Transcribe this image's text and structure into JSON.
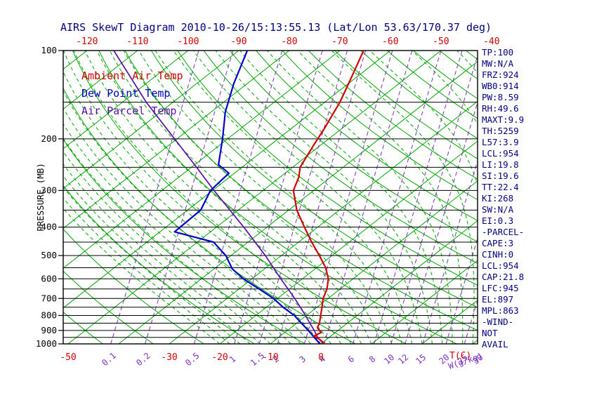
{
  "title": "AIRS SkewT Diagram 2010-10-26/15:13:55.13 (Lat/Lon 53.63/170.37 deg)",
  "legend": {
    "items": [
      {
        "label": "Ambient Air Temp",
        "color": "#D40000"
      },
      {
        "label": "Dew Point Temp",
        "color": "#0000CC"
      },
      {
        "label": "Air Parcel Temp",
        "color": "#5A0DA8"
      }
    ]
  },
  "axes": {
    "left": {
      "title": "PRESSURE (MB)",
      "ticks": [
        100,
        200,
        300,
        400,
        500,
        600,
        700,
        800,
        900,
        1000
      ]
    },
    "top": {
      "ticks": [
        -120,
        -110,
        -100,
        -90,
        -80,
        -70,
        -60,
        -50,
        -40
      ],
      "color": "#D40000"
    },
    "bottom_temp": {
      "ticks": [
        -50,
        -30,
        -20,
        -10,
        0
      ],
      "unit": "T(C)",
      "color": "#D40000"
    },
    "bottom_mixing": {
      "ticks": [
        0.1,
        0.2,
        0.5,
        1,
        1.5,
        2,
        3,
        4,
        6,
        8,
        10,
        12,
        15,
        20,
        25,
        30
      ],
      "unit": "W(g/kg)",
      "color": "#7D2FC0"
    }
  },
  "stats": [
    "TP:100",
    "MW:N/A",
    "FRZ:924",
    "WB0:914",
    "PW:8.59",
    "RH:49.6",
    "MAXT:9.9",
    "TH:5259",
    "L57:3.9",
    "LCL:954",
    "LI:19.8",
    "SI:19.6",
    "TT:22.4",
    "KI:268",
    "SW:N/A",
    "EI:0.3",
    "-PARCEL-",
    "CAPE:3",
    "CINH:0",
    "LCL:954",
    "CAP:21.8",
    "LFC:945",
    "EL:897",
    "MPL:863",
    "-WIND-",
    "NOT",
    "AVAIL"
  ],
  "chart_data": {
    "type": "line",
    "variant": "skew-t-log-p",
    "title": "AIRS SkewT Diagram 2010-10-26/15:13:55.13 (Lat/Lon 53.63/170.37 deg)",
    "x_axis": {
      "label": "Temperature (C)",
      "top_row_range": [
        -120,
        -40
      ],
      "bottom_row_range": [
        -50,
        30
      ],
      "skewed": true
    },
    "y_axis": {
      "label": "Pressure (MB)",
      "range": [
        100,
        1000
      ],
      "scale": "log",
      "gridline_step_mb": 50
    },
    "background": {
      "isotherm_step_c": 10,
      "dry_adiabat_theta_k": {
        "from": 220,
        "to": 450,
        "step": 10
      },
      "moist_adiabat_start_c": {
        "from": -20,
        "to": 38,
        "step": 2
      },
      "mixing_ratio_lines_gkg": [
        0.1,
        0.2,
        0.5,
        1,
        1.5,
        2,
        3,
        4,
        6,
        8,
        10,
        12,
        15,
        20,
        25,
        30
      ],
      "isotherm_color": "#00A600",
      "adiabat_color": "#00A600",
      "mixing_ratio_color": "#7D2FC0",
      "isobar_color": "#000000"
    },
    "series": [
      {
        "name": "Ambient Air Temp",
        "color": "#D40000",
        "units": {
          "p": "mb",
          "t": "C"
        },
        "points": [
          [
            1000,
            0.8
          ],
          [
            962,
            -1.6
          ],
          [
            940,
            -3.4
          ],
          [
            915,
            -2.8
          ],
          [
            880,
            -4.8
          ],
          [
            850,
            -5.5
          ],
          [
            800,
            -7.2
          ],
          [
            750,
            -9.0
          ],
          [
            700,
            -11.0
          ],
          [
            650,
            -12.6
          ],
          [
            600,
            -14.9
          ],
          [
            550,
            -18.2
          ],
          [
            500,
            -22.5
          ],
          [
            450,
            -27.4
          ],
          [
            400,
            -32.6
          ],
          [
            350,
            -38.4
          ],
          [
            300,
            -44.0
          ],
          [
            270,
            -46.3
          ],
          [
            250,
            -48.5
          ],
          [
            210,
            -51.4
          ],
          [
            185,
            -53.4
          ],
          [
            150,
            -57.0
          ],
          [
            125,
            -60.7
          ],
          [
            100,
            -65.3
          ]
        ]
      },
      {
        "name": "Dew Point Temp",
        "color": "#0000CC",
        "units": {
          "p": "mb",
          "t": "C"
        },
        "points": [
          [
            1000,
            -0.2
          ],
          [
            960,
            -2.4
          ],
          [
            925,
            -4.4
          ],
          [
            890,
            -6.5
          ],
          [
            845,
            -9.4
          ],
          [
            800,
            -12.4
          ],
          [
            750,
            -16.7
          ],
          [
            700,
            -20.8
          ],
          [
            650,
            -26.0
          ],
          [
            600,
            -31.7
          ],
          [
            555,
            -36.4
          ],
          [
            500,
            -41.0
          ],
          [
            450,
            -46.8
          ],
          [
            415,
            -57.1
          ],
          [
            350,
            -57.4
          ],
          [
            300,
            -60.4
          ],
          [
            262,
            -61.1
          ],
          [
            245,
            -65.3
          ],
          [
            200,
            -71.0
          ],
          [
            162,
            -77.2
          ],
          [
            130,
            -82.6
          ],
          [
            100,
            -88.3
          ]
        ]
      },
      {
        "name": "Air Parcel Temp",
        "color": "#5A0DA8",
        "units": {
          "p": "mb",
          "t": "C"
        },
        "points": [
          [
            1000,
            0.5
          ],
          [
            950,
            -2.3
          ],
          [
            900,
            -4.7
          ],
          [
            850,
            -7.4
          ],
          [
            800,
            -10.2
          ],
          [
            700,
            -16.6
          ],
          [
            600,
            -24.3
          ],
          [
            500,
            -33.2
          ],
          [
            400,
            -44.6
          ],
          [
            300,
            -59.7
          ],
          [
            250,
            -69.0
          ],
          [
            200,
            -80.5
          ],
          [
            150,
            -95.3
          ],
          [
            100,
            -114.7
          ]
        ]
      }
    ]
  }
}
